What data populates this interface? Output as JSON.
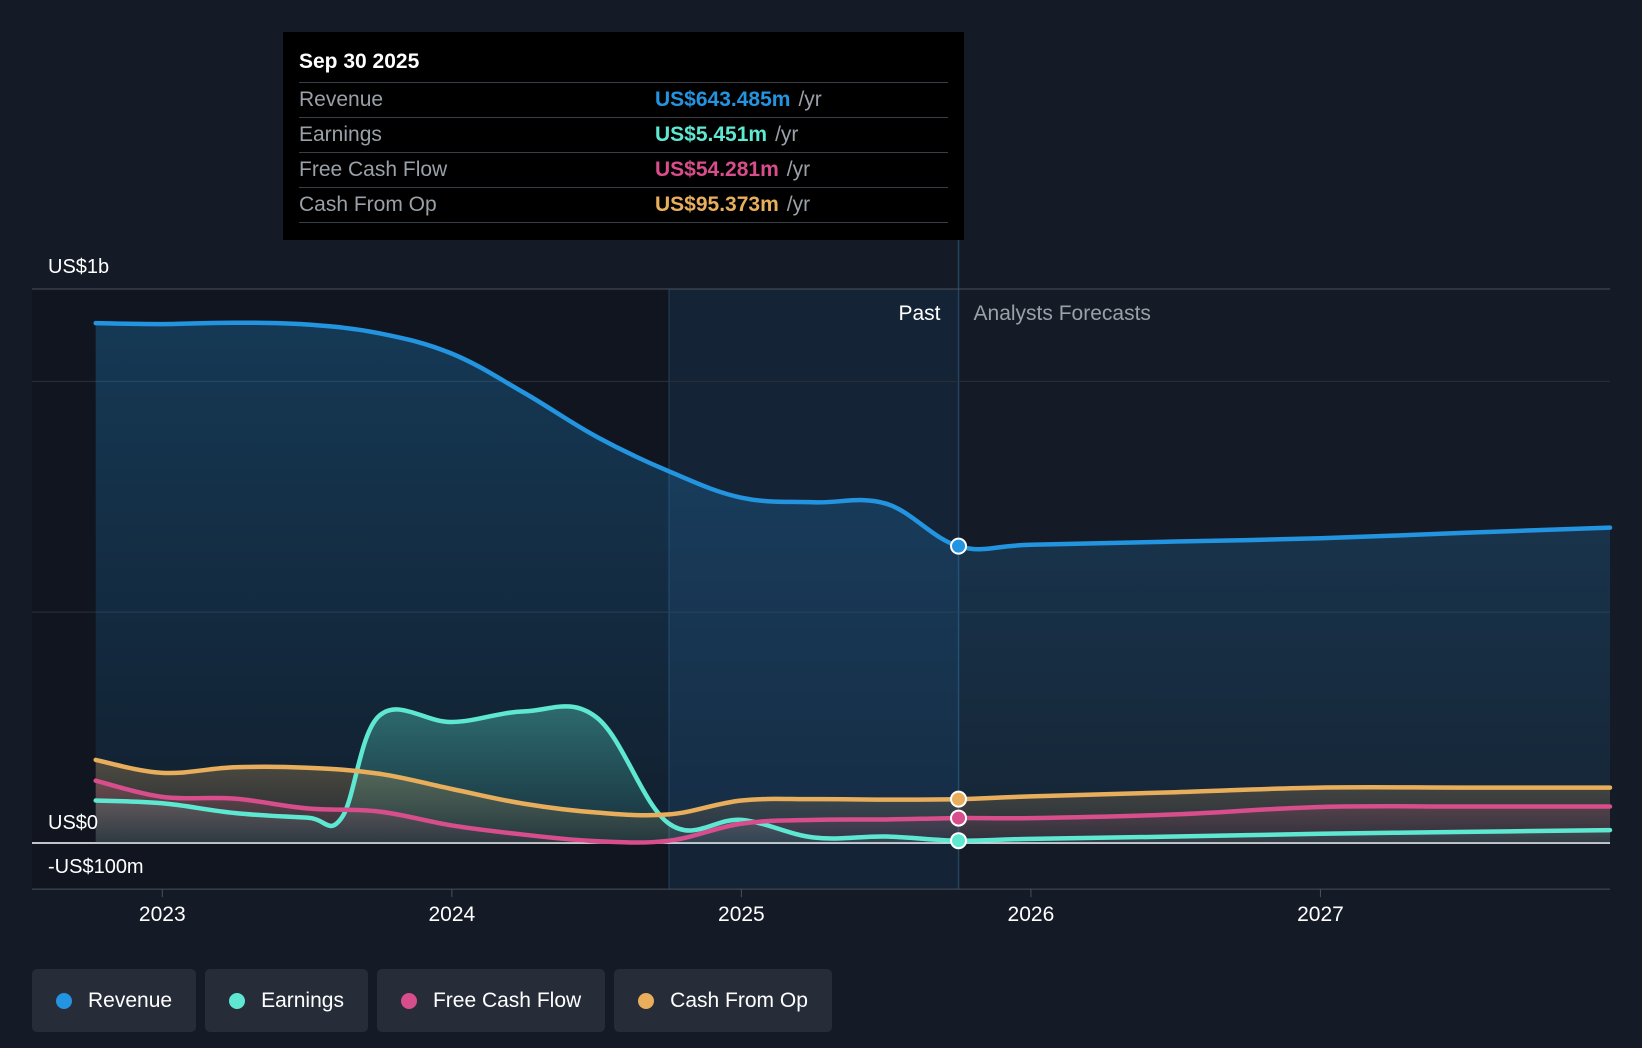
{
  "tooltip": {
    "date": "Sep 30 2025",
    "rows": [
      {
        "label": "Revenue",
        "value": "US$643.485m",
        "unit": "/yr",
        "color": "#2394df"
      },
      {
        "label": "Earnings",
        "value": "US$5.451m",
        "unit": "/yr",
        "color": "#5ee8d2"
      },
      {
        "label": "Free Cash Flow",
        "value": "US$54.281m",
        "unit": "/yr",
        "color": "#d84d8b"
      },
      {
        "label": "Cash From Op",
        "value": "US$95.373m",
        "unit": "/yr",
        "color": "#e8ae5c"
      }
    ]
  },
  "regions": {
    "past": "Past",
    "forecast": "Analysts Forecasts"
  },
  "legend": [
    {
      "label": "Revenue",
      "color": "#2394df"
    },
    {
      "label": "Earnings",
      "color": "#5ee8d2"
    },
    {
      "label": "Free Cash Flow",
      "color": "#d84d8b"
    },
    {
      "label": "Cash From Op",
      "color": "#e8ae5c"
    }
  ],
  "chart_data": {
    "type": "line",
    "y_labels": [
      {
        "text": "US$1b",
        "value": 1200
      },
      {
        "text": "US$0",
        "value": 0
      },
      {
        "text": "-US$100m",
        "value": -100
      }
    ],
    "ylim": [
      -100,
      1200
    ],
    "gridlines": [
      1200,
      1000,
      500,
      0,
      -100
    ],
    "xlim": [
      2022.55,
      2028.0
    ],
    "x_ticks": [
      {
        "label": "2023",
        "value": 2023
      },
      {
        "label": "2024",
        "value": 2024
      },
      {
        "label": "2025",
        "value": 2025
      },
      {
        "label": "2026",
        "value": 2026
      },
      {
        "label": "2027",
        "value": 2027
      }
    ],
    "past_end": 2025.75,
    "highlight_start": 2024.75,
    "series": [
      {
        "name": "Revenue",
        "color": "#2394df",
        "points": [
          [
            2022.77,
            1126
          ],
          [
            2023.0,
            1124
          ],
          [
            2023.25,
            1127
          ],
          [
            2023.5,
            1123
          ],
          [
            2023.75,
            1104
          ],
          [
            2024.0,
            1060
          ],
          [
            2024.25,
            975
          ],
          [
            2024.5,
            880
          ],
          [
            2024.75,
            805
          ],
          [
            2025.0,
            748
          ],
          [
            2025.25,
            738
          ],
          [
            2025.5,
            735
          ],
          [
            2025.75,
            643
          ],
          [
            2026.0,
            646
          ],
          [
            2026.5,
            653
          ],
          [
            2027.0,
            660
          ],
          [
            2027.5,
            672
          ],
          [
            2028.0,
            683
          ]
        ]
      },
      {
        "name": "Earnings",
        "color": "#5ee8d2",
        "points": [
          [
            2022.77,
            92
          ],
          [
            2023.0,
            86
          ],
          [
            2023.25,
            65
          ],
          [
            2023.5,
            55
          ],
          [
            2023.62,
            55
          ],
          [
            2023.75,
            276
          ],
          [
            2024.0,
            262
          ],
          [
            2024.25,
            285
          ],
          [
            2024.5,
            272
          ],
          [
            2024.75,
            42
          ],
          [
            2025.0,
            50
          ],
          [
            2025.25,
            12
          ],
          [
            2025.5,
            14
          ],
          [
            2025.75,
            5
          ],
          [
            2026.0,
            9
          ],
          [
            2026.5,
            14
          ],
          [
            2027.0,
            20
          ],
          [
            2027.5,
            24
          ],
          [
            2028.0,
            28
          ]
        ]
      },
      {
        "name": "Free Cash Flow",
        "color": "#d84d8b",
        "points": [
          [
            2022.77,
            135
          ],
          [
            2023.0,
            100
          ],
          [
            2023.25,
            96
          ],
          [
            2023.5,
            75
          ],
          [
            2023.75,
            68
          ],
          [
            2024.0,
            38
          ],
          [
            2024.25,
            18
          ],
          [
            2024.5,
            4
          ],
          [
            2024.75,
            5
          ],
          [
            2025.0,
            42
          ],
          [
            2025.25,
            50
          ],
          [
            2025.5,
            51
          ],
          [
            2025.75,
            54
          ],
          [
            2026.0,
            54
          ],
          [
            2026.5,
            62
          ],
          [
            2027.0,
            78
          ],
          [
            2027.5,
            79
          ],
          [
            2028.0,
            79
          ]
        ]
      },
      {
        "name": "Cash From Op",
        "color": "#e8ae5c",
        "points": [
          [
            2022.77,
            180
          ],
          [
            2023.0,
            152
          ],
          [
            2023.25,
            164
          ],
          [
            2023.5,
            163
          ],
          [
            2023.75,
            150
          ],
          [
            2024.0,
            117
          ],
          [
            2024.25,
            85
          ],
          [
            2024.5,
            66
          ],
          [
            2024.75,
            62
          ],
          [
            2025.0,
            92
          ],
          [
            2025.25,
            95
          ],
          [
            2025.5,
            94
          ],
          [
            2025.75,
            95
          ],
          [
            2026.0,
            101
          ],
          [
            2026.5,
            110
          ],
          [
            2027.0,
            120
          ],
          [
            2027.5,
            120
          ],
          [
            2028.0,
            120
          ]
        ]
      }
    ]
  }
}
